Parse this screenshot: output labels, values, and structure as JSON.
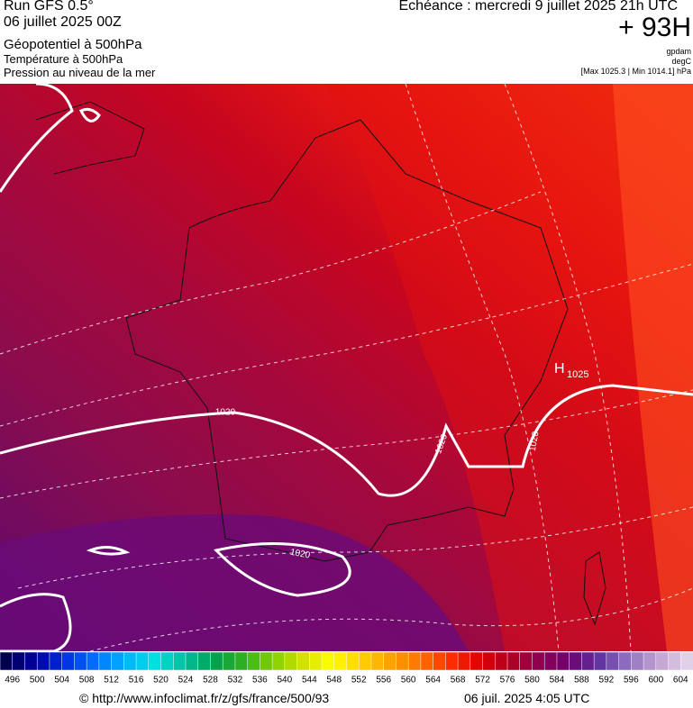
{
  "header": {
    "run": "Run GFS 0.5°",
    "date": "06 juillet 2025 00Z",
    "field1": "Géopotentiel à 500hPa",
    "field2": "Température à 500hPa",
    "field3": "Pression au niveau de la mer",
    "valid": "Echéance : mercredi 9 juillet 2025 21h UTC",
    "lead": "+ 93H",
    "unit1": "gpdam",
    "unit2": "degC",
    "range": "[Max 1025.3 | Min 1014.1] hPa"
  },
  "map": {
    "isobar_labels": [
      "1020",
      "1020",
      "1020",
      "1020"
    ],
    "high": {
      "symbol": "H",
      "value": "1025"
    }
  },
  "legend": {
    "ticks": [
      496,
      500,
      504,
      508,
      512,
      516,
      520,
      524,
      528,
      532,
      536,
      540,
      544,
      548,
      552,
      556,
      560,
      564,
      568,
      572,
      576,
      580,
      584,
      588,
      592,
      596,
      600,
      604
    ]
  },
  "footer": {
    "source": "© http://www.infoclimat.fr/z/gfs/france/500/93",
    "generated": "06 juil. 2025  4:05 UTC"
  }
}
